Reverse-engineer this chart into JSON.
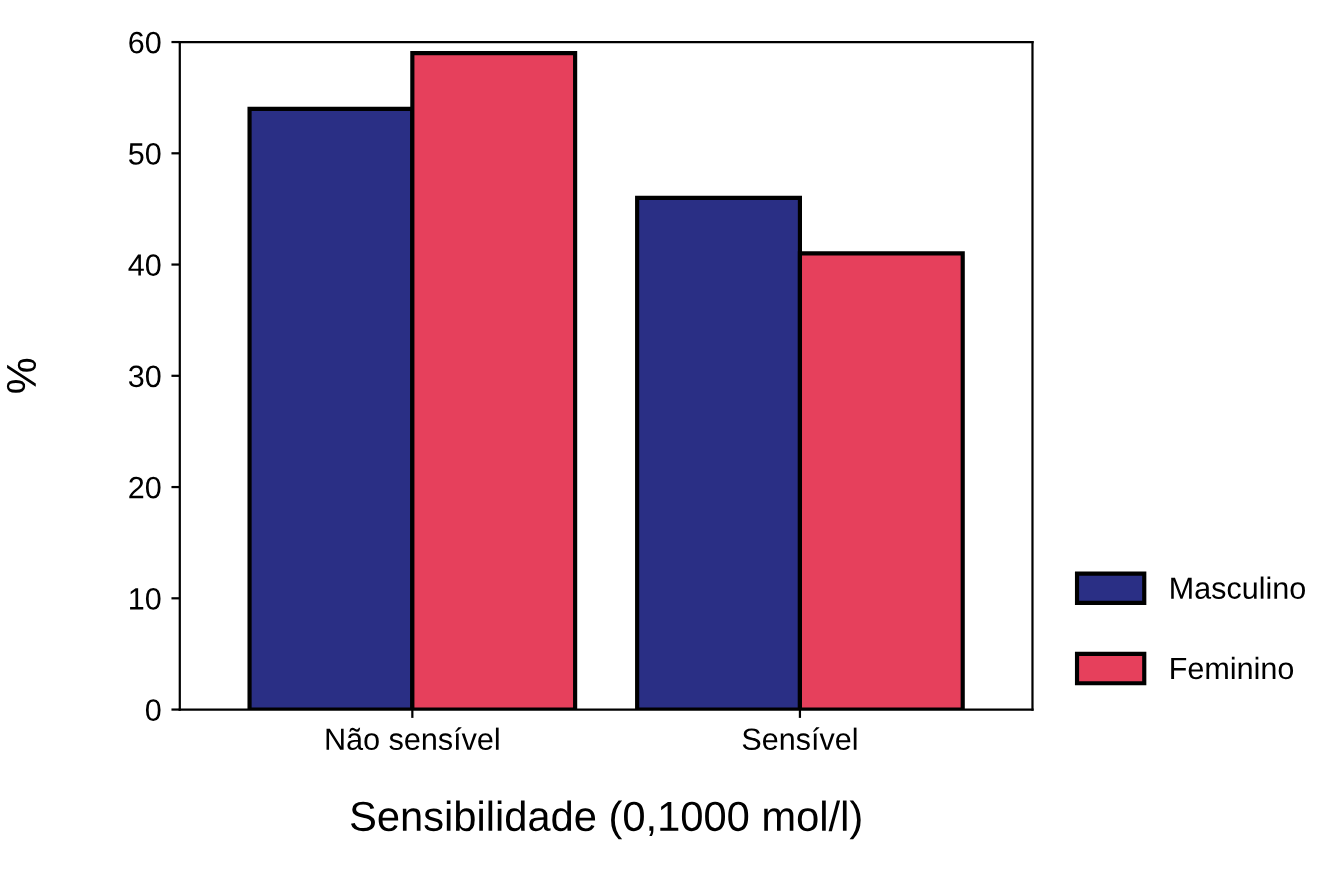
{
  "chart_data": {
    "type": "bar",
    "xlabel": "Sensibilidade (0,1000 mol/l)",
    "ylabel": "%",
    "categories": [
      "Não sensível",
      "Sensível"
    ],
    "series": [
      {
        "name": "Masculino",
        "color": "#2a2f85",
        "values": [
          54,
          46
        ]
      },
      {
        "name": "Feminino",
        "color": "#e6405c",
        "values": [
          59,
          41
        ]
      }
    ],
    "ylim": [
      0,
      60
    ],
    "yticks": [
      0,
      10,
      20,
      30,
      40,
      50,
      60
    ],
    "grid": false,
    "legend": "right"
  }
}
